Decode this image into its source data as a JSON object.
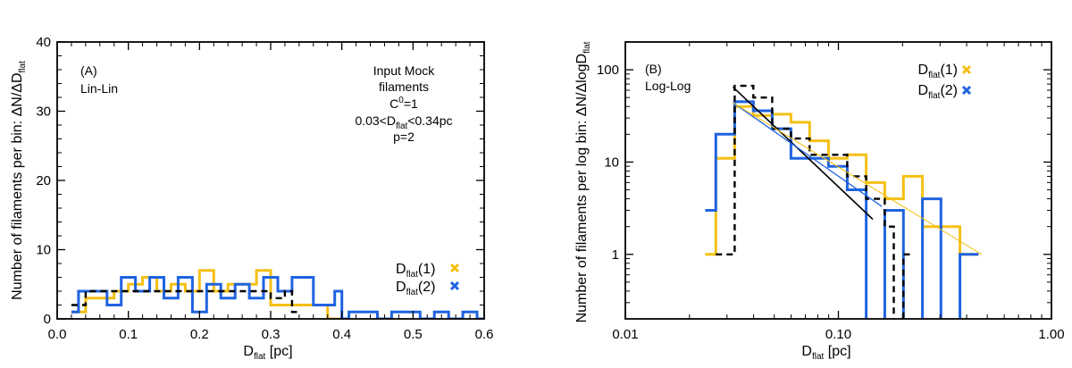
{
  "colors": {
    "d1": "#f5c015",
    "d2": "#1f63e0",
    "mock": "#000000",
    "axes": "#000000"
  },
  "chart_data": [
    {
      "type": "histogram-step",
      "panel_label": "(A)",
      "scale_label": "Lin-Lin",
      "xscale": "linear",
      "yscale": "linear",
      "xlim": [
        0,
        0.6
      ],
      "ylim": [
        0,
        40
      ],
      "xticks": [
        0,
        0.1,
        0.2,
        0.3,
        0.4,
        0.5,
        0.6
      ],
      "xtick_labels": [
        "0.0",
        "0.1",
        "0.2",
        "0.3",
        "0.4",
        "0.5",
        "0.6"
      ],
      "yticks": [
        0,
        10,
        20,
        30,
        40
      ],
      "ytick_labels": [
        "0",
        "10",
        "20",
        "30",
        "40"
      ],
      "xminor": [
        0.02,
        0.04,
        0.06,
        0.08,
        0.12,
        0.14,
        0.16,
        0.18,
        0.22,
        0.24,
        0.26,
        0.28,
        0.32,
        0.34,
        0.36,
        0.38,
        0.42,
        0.44,
        0.46,
        0.48,
        0.52,
        0.54,
        0.56,
        0.58
      ],
      "yminor": [
        2,
        4,
        6,
        8,
        12,
        14,
        16,
        18,
        22,
        24,
        26,
        28,
        32,
        34,
        36,
        38
      ],
      "xlabel": {
        "main": "D",
        "sub": "flat",
        "rest": " [pc]"
      },
      "ylabel": {
        "main": "Number of filaments per bin: ΔN/ΔD",
        "sub": "flat"
      },
      "annotation": {
        "l1": "Input Mock",
        "l2": "filaments",
        "l3a": "C",
        "l3sup": "0",
        "l3b": "=1",
        "l4a": "0.03<D",
        "l4sub": "flat",
        "l4b": "<0.34pc",
        "l5": "p=2"
      },
      "legend": [
        {
          "main": "D",
          "sub": "flat",
          "rest": "(1)",
          "color_key": "d1"
        },
        {
          "main": "D",
          "sub": "flat",
          "rest": "(2)",
          "color_key": "d2"
        }
      ],
      "series": [
        {
          "name": "Dflat(1)",
          "color_key": "d1",
          "dashed": false,
          "edges": [
            0.02,
            0.04,
            0.06,
            0.08,
            0.1,
            0.12,
            0.14,
            0.16,
            0.18,
            0.2,
            0.22,
            0.24,
            0.26,
            0.28,
            0.3,
            0.32,
            0.34,
            0.36,
            0.38,
            0.4
          ],
          "values": [
            1,
            3,
            3,
            4,
            5,
            6,
            4,
            5,
            4,
            7,
            4,
            5,
            5,
            7,
            2,
            2,
            2,
            2,
            0
          ]
        },
        {
          "name": "Dflat(2)",
          "color_key": "d2",
          "dashed": false,
          "edges": [
            0.02,
            0.03,
            0.05,
            0.07,
            0.09,
            0.11,
            0.13,
            0.15,
            0.17,
            0.19,
            0.21,
            0.23,
            0.25,
            0.27,
            0.29,
            0.31,
            0.33,
            0.36,
            0.39,
            0.4,
            0.41,
            0.43,
            0.45,
            0.47,
            0.49,
            0.51,
            0.53,
            0.55,
            0.57,
            0.59,
            0.6
          ],
          "values": [
            1,
            4,
            4,
            2,
            6,
            4,
            6,
            3,
            6,
            1,
            5,
            3,
            5,
            3,
            6,
            4,
            6,
            2,
            4,
            0,
            1,
            1,
            0,
            1,
            1,
            0,
            1,
            0,
            1,
            0
          ]
        },
        {
          "name": "Input mock",
          "color_key": "mock",
          "dashed": true,
          "edges": [
            0.02,
            0.025,
            0.04,
            0.06,
            0.08,
            0.1,
            0.12,
            0.14,
            0.16,
            0.18,
            0.2,
            0.22,
            0.24,
            0.26,
            0.28,
            0.3,
            0.32,
            0.33,
            0.34
          ],
          "values": [
            2,
            2,
            4,
            4,
            4,
            4,
            4,
            4,
            4,
            4,
            4,
            4,
            4,
            4,
            4,
            3,
            4,
            1
          ]
        }
      ]
    },
    {
      "type": "histogram-step",
      "panel_label": "(B)",
      "scale_label": "Log-Log",
      "xscale": "log",
      "yscale": "log",
      "xlim": [
        0.01,
        1.0
      ],
      "ylim": [
        0.2,
        200
      ],
      "xticks": [
        0.01,
        0.1,
        1.0
      ],
      "xtick_labels": [
        "0.01",
        "0.10",
        "1.00"
      ],
      "yticks": [
        1,
        10,
        100
      ],
      "ytick_labels": [
        "1",
        "10",
        "100"
      ],
      "xminor": [
        0.02,
        0.03,
        0.04,
        0.05,
        0.06,
        0.07,
        0.08,
        0.09,
        0.2,
        0.3,
        0.4,
        0.5,
        0.6,
        0.7,
        0.8,
        0.9
      ],
      "yminor": [
        0.3,
        0.4,
        0.5,
        0.6,
        0.7,
        0.8,
        0.9,
        2,
        3,
        4,
        5,
        6,
        7,
        8,
        9,
        20,
        30,
        40,
        50,
        60,
        70,
        80,
        90,
        200
      ],
      "xlabel": {
        "main": "D",
        "sub": "flat",
        "rest": " [pc]"
      },
      "ylabel": {
        "main": "Number of filaments per log bin: ΔN/ΔlogD",
        "sub": "flat"
      },
      "legend": [
        {
          "main": "D",
          "sub": "flat",
          "rest": "(1)",
          "color_key": "d1"
        },
        {
          "main": "D",
          "sub": "flat",
          "rest": "(2)",
          "color_key": "d2"
        }
      ],
      "series": [
        {
          "name": "Dflat(1)",
          "color_key": "d1",
          "dashed": false,
          "edges": [
            0.0237,
            0.0266,
            0.0326,
            0.0399,
            0.0489,
            0.0599,
            0.0733,
            0.0898,
            0.11,
            0.135,
            0.165,
            0.202,
            0.248,
            0.303,
            0.372,
            0.455
          ],
          "values": [
            1,
            11,
            40,
            32,
            33,
            27,
            17,
            11,
            12,
            6,
            4,
            7,
            2,
            2,
            1
          ]
        },
        {
          "name": "Dflat(2)",
          "color_key": "d2",
          "dashed": false,
          "edges": [
            0.0237,
            0.0266,
            0.0326,
            0.0399,
            0.0489,
            0.0599,
            0.0733,
            0.0898,
            0.11,
            0.135,
            0.165,
            0.202,
            0.248,
            0.303,
            0.372,
            0.455
          ],
          "values": [
            3,
            20,
            45,
            36,
            23,
            11,
            11,
            9,
            5,
            0.13,
            3,
            0.13,
            4,
            0.13,
            1
          ]
        },
        {
          "name": "Input mock",
          "color_key": "mock",
          "dashed": true,
          "edges": [
            0.0266,
            0.0326,
            0.0399,
            0.0489,
            0.0599,
            0.0733,
            0.0898,
            0.11,
            0.135,
            0.165,
            0.182,
            0.202,
            0.222
          ],
          "values": [
            1,
            67,
            50,
            23,
            18,
            12,
            12,
            7,
            4,
            2,
            0.13,
            1
          ]
        }
      ],
      "fit_lines": [
        {
          "color_key": "mock",
          "width": 1.6,
          "x0": 0.032,
          "x1": 0.145,
          "y0": 65,
          "y1": 2.4
        },
        {
          "color_key": "d2",
          "width": 1.3,
          "x0": 0.032,
          "x1": 0.16,
          "y0": 44,
          "y1": 3.3
        },
        {
          "color_key": "d1",
          "width": 1.0,
          "x0": 0.032,
          "x1": 0.47,
          "y0": 44,
          "y1": 1.0
        }
      ]
    }
  ]
}
